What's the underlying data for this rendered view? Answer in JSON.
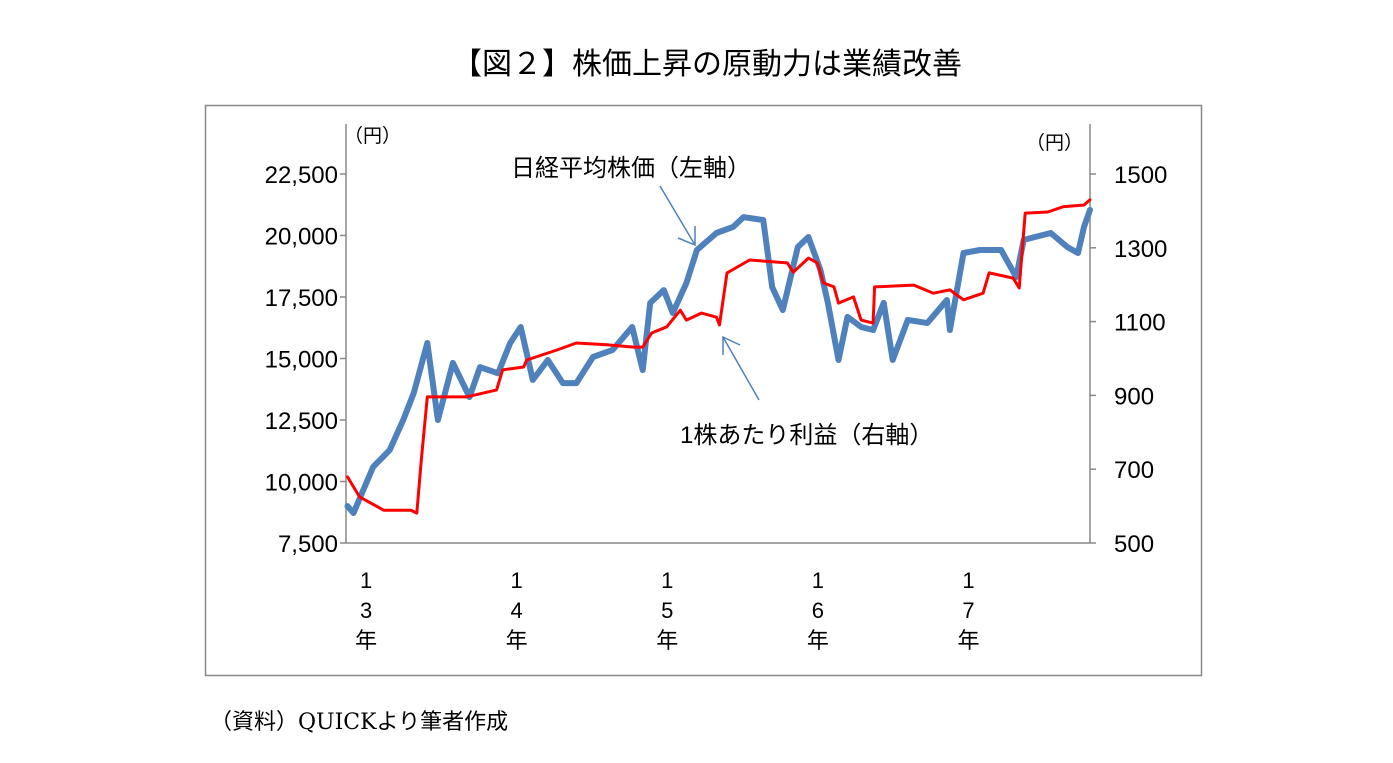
{
  "chart_data": {
    "type": "line",
    "title": "【図２】株価上昇の原動力は業績改善",
    "source": "（資料）QUICKより筆者作成",
    "left_unit": "（円）",
    "right_unit": "（円）",
    "xlim": [
      2012.87,
      2017.81
    ],
    "x_ticks": [
      {
        "x": 2013,
        "label": "13年"
      },
      {
        "x": 2014,
        "label": "14年"
      },
      {
        "x": 2015,
        "label": "15年"
      },
      {
        "x": 2016,
        "label": "16年"
      },
      {
        "x": 2017,
        "label": "17年"
      }
    ],
    "left_axis": {
      "ylim": [
        7500,
        22500
      ],
      "ticks": [
        7500,
        10000,
        12500,
        15000,
        17500,
        20000,
        22500
      ],
      "tick_labels": [
        "7,500",
        "10,000",
        "12,500",
        "15,000",
        "17,500",
        "20,000",
        "22,500"
      ]
    },
    "right_axis": {
      "ylim": [
        500,
        1500
      ],
      "ticks": [
        500,
        700,
        900,
        1100,
        1300,
        1500
      ],
      "tick_labels": [
        "500",
        "700",
        "900",
        "1100",
        "1300",
        "1500"
      ]
    },
    "series": [
      {
        "name": "日経平均株価（左軸）",
        "axis": "left",
        "color": "#4f81bd",
        "x": [
          2012.88,
          2012.92,
          2013.05,
          2013.16,
          2013.25,
          2013.32,
          2013.41,
          2013.48,
          2013.58,
          2013.69,
          2013.76,
          2013.88,
          2013.96,
          2014.03,
          2014.11,
          2014.21,
          2014.31,
          2014.4,
          2014.51,
          2014.64,
          2014.77,
          2014.84,
          2014.89,
          2014.98,
          2015.04,
          2015.13,
          2015.2,
          2015.33,
          2015.44,
          2015.51,
          2015.64,
          2015.67,
          2015.7,
          2015.77,
          2015.87,
          2015.94,
          2016.02,
          2016.07,
          2016.14,
          2016.2,
          2016.29,
          2016.37,
          2016.44,
          2016.5,
          2016.6,
          2016.73,
          2016.86,
          2016.88,
          2016.97,
          2017.08,
          2017.22,
          2017.32,
          2017.37,
          2017.55,
          2017.66,
          2017.73,
          2017.77,
          2017.81
        ],
        "y": [
          9000,
          8720,
          10590,
          11280,
          12500,
          13600,
          15630,
          12500,
          14820,
          13430,
          14650,
          14400,
          15630,
          16280,
          14130,
          14940,
          14000,
          14000,
          15060,
          15350,
          16280,
          14530,
          17260,
          17780,
          16850,
          18070,
          19410,
          20100,
          20350,
          20750,
          20630,
          19290,
          17900,
          16970,
          19530,
          19940,
          18600,
          17260,
          14940,
          16690,
          16280,
          16160,
          17260,
          14940,
          16570,
          16440,
          17380,
          16160,
          19290,
          19410,
          19410,
          18310,
          19820,
          20100,
          19530,
          19290,
          20350,
          21040
        ]
      },
      {
        "name": "1株あたり利益（右軸）",
        "axis": "right",
        "color": "#ff0000",
        "x": [
          2012.88,
          2012.96,
          2013.12,
          2013.3,
          2013.34,
          2013.37,
          2013.41,
          2013.67,
          2013.87,
          2013.91,
          2014.05,
          2014.07,
          2014.27,
          2014.4,
          2014.6,
          2014.78,
          2014.84,
          2014.9,
          2015.0,
          2015.09,
          2015.13,
          2015.23,
          2015.33,
          2015.35,
          2015.4,
          2015.55,
          2015.8,
          2015.84,
          2015.94,
          2016.0,
          2016.04,
          2016.11,
          2016.14,
          2016.24,
          2016.29,
          2016.37,
          2016.38,
          2016.64,
          2016.77,
          2016.88,
          2016.97,
          2017.1,
          2017.14,
          2017.3,
          2017.34,
          2017.38,
          2017.53,
          2017.63,
          2017.77,
          2017.81
        ],
        "y": [
          679,
          625,
          589,
          589,
          581,
          725,
          896,
          896,
          915,
          969,
          977,
          996,
          1023,
          1042,
          1037,
          1031,
          1031,
          1069,
          1086,
          1131,
          1104,
          1123,
          1112,
          1091,
          1232,
          1267,
          1259,
          1234,
          1272,
          1259,
          1205,
          1194,
          1150,
          1167,
          1104,
          1096,
          1194,
          1199,
          1177,
          1186,
          1159,
          1177,
          1232,
          1218,
          1191,
          1394,
          1397,
          1411,
          1416,
          1430
        ]
      }
    ],
    "annotations": [
      {
        "text": "日経平均株価（左軸）",
        "series": 0
      },
      {
        "text": "1株あたり利益（右軸）",
        "series": 1
      }
    ]
  }
}
